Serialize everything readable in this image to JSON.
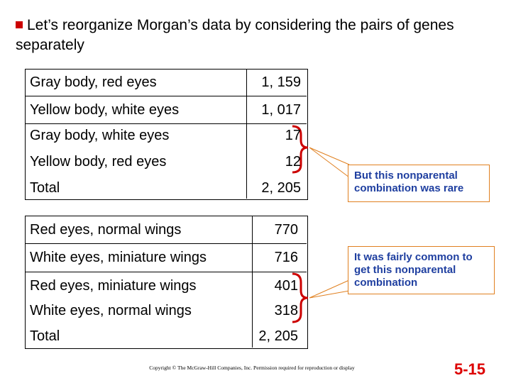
{
  "title": "Let’s reorganize Morgan’s data by considering the pairs of genes separately",
  "tables": [
    {
      "rows": [
        [
          "Gray body, red eyes",
          "1, 159"
        ],
        [
          "Yellow body, white eyes",
          "1, 017"
        ],
        [
          "Gray body, white eyes",
          "17"
        ],
        [
          "Yellow body, red eyes",
          "12"
        ],
        [
          "Total",
          "2, 205"
        ]
      ]
    },
    {
      "rows": [
        [
          "Red eyes, normal wings",
          "770"
        ],
        [
          "White eyes, miniature wings",
          "716"
        ],
        [
          "Red eyes, miniature wings",
          "401"
        ],
        [
          "White eyes, normal wings",
          "318"
        ],
        [
          "Total",
          "2, 205"
        ]
      ]
    }
  ],
  "callouts": [
    "But this nonparental combination was rare",
    "It was fairly common to get this nonparental combination"
  ],
  "copyright": "Copyright © The McGraw-Hill Companies, Inc. Permission required for reproduction or display",
  "slide_number": "5-15"
}
